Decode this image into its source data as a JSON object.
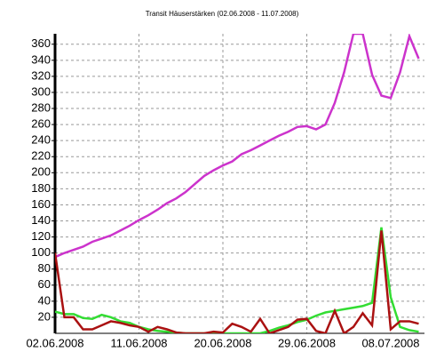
{
  "chart_data": {
    "type": "line",
    "title": "Transit Häuserstärken (02.06.2008 - 11.07.2008)",
    "x": [
      "02.06.2008",
      "03.06.2008",
      "04.06.2008",
      "05.06.2008",
      "06.06.2008",
      "07.06.2008",
      "08.06.2008",
      "09.06.2008",
      "10.06.2008",
      "11.06.2008",
      "12.06.2008",
      "13.06.2008",
      "14.06.2008",
      "15.06.2008",
      "16.06.2008",
      "17.06.2008",
      "18.06.2008",
      "19.06.2008",
      "20.06.2008",
      "21.06.2008",
      "22.06.2008",
      "23.06.2008",
      "24.06.2008",
      "25.06.2008",
      "26.06.2008",
      "27.06.2008",
      "28.06.2008",
      "29.06.2008",
      "30.06.2008",
      "01.07.2008",
      "02.07.2008",
      "03.07.2008",
      "04.07.2008",
      "05.07.2008",
      "06.07.2008",
      "07.07.2008",
      "08.07.2008",
      "09.07.2008",
      "10.07.2008",
      "11.07.2008"
    ],
    "xticks": [
      "02.06.2008",
      "11.06.2008",
      "20.06.2008",
      "29.06.2008",
      "08.07.2008"
    ],
    "series": [
      {
        "color": "#cc33cc",
        "values": [
          95,
          100,
          104,
          108,
          114,
          118,
          122,
          128,
          134,
          141,
          147,
          154,
          162,
          168,
          176,
          186,
          196,
          203,
          209,
          214,
          223,
          228,
          234,
          240,
          246,
          251,
          257,
          258,
          254,
          260,
          287,
          325,
          373,
          373,
          322,
          296,
          293,
          325,
          370,
          342
        ]
      },
      {
        "color": "#33dd33",
        "values": [
          27,
          24,
          24,
          19,
          18,
          23,
          20,
          15,
          13,
          8,
          5,
          3,
          2,
          1,
          0,
          0,
          0,
          0,
          0,
          0,
          0,
          0,
          0,
          3,
          7,
          10,
          14,
          17,
          22,
          26,
          28,
          30,
          32,
          34,
          38,
          132,
          45,
          8,
          4,
          2
        ]
      },
      {
        "color": "#aa1111",
        "values": [
          100,
          20,
          20,
          5,
          5,
          10,
          15,
          13,
          10,
          8,
          2,
          8,
          5,
          1,
          0,
          0,
          0,
          2,
          1,
          12,
          8,
          2,
          18,
          0,
          4,
          8,
          17,
          18,
          3,
          0,
          28,
          0,
          8,
          25,
          10,
          128,
          5,
          15,
          15,
          12
        ]
      }
    ],
    "ylim": [
      0,
      373
    ],
    "yticks": [
      20,
      40,
      60,
      80,
      100,
      120,
      140,
      160,
      180,
      200,
      220,
      240,
      260,
      280,
      300,
      320,
      340,
      360
    ],
    "grid": true
  }
}
